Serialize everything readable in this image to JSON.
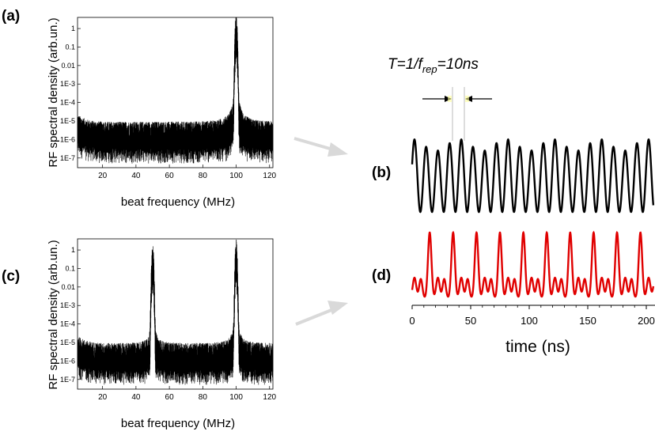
{
  "panel_labels": {
    "a": "(a)",
    "b": "(b)",
    "c": "(c)",
    "d": "(d)"
  },
  "period_annotation": {
    "prefix": "T=1/f",
    "subscript": "rep",
    "suffix": "=10ns"
  },
  "colors": {
    "spectrum": "#000000",
    "trace_b": "#000000",
    "trace_d": "#e00000",
    "arrow": "#d9d9d9"
  },
  "chart_data": [
    {
      "id": "a",
      "type": "line",
      "xlabel": "beat frequency (MHz)",
      "ylabel": "RF spectral density (arb.un.)",
      "xlim": [
        5,
        122
      ],
      "ylim": [
        3e-08,
        4
      ],
      "log_y": true,
      "x_ticks": [
        "20",
        "40",
        "60",
        "80",
        "100",
        "120"
      ],
      "y_ticks": [
        "1",
        "0.1",
        "0.01",
        "1E-3",
        "1E-4",
        "1E-5",
        "1E-6",
        "1E-7"
      ],
      "peaks": [
        {
          "x": 100,
          "y": 1
        }
      ],
      "noise_floor": 1e-06
    },
    {
      "id": "c",
      "type": "line",
      "xlabel": "beat frequency (MHz)",
      "ylabel": "RF spectral density (arb.un.)",
      "xlim": [
        5,
        122
      ],
      "ylim": [
        3e-08,
        4
      ],
      "log_y": true,
      "x_ticks": [
        "20",
        "40",
        "60",
        "80",
        "100",
        "120"
      ],
      "y_ticks": [
        "1",
        "0.1",
        "0.01",
        "1E-3",
        "1E-4",
        "1E-5",
        "1E-6",
        "1E-7"
      ],
      "peaks": [
        {
          "x": 50,
          "y": 0.3
        },
        {
          "x": 100,
          "y": 0.45
        }
      ],
      "noise_floor": 1e-06
    },
    {
      "id": "b",
      "type": "line",
      "xlabel": "",
      "period_ns": 10,
      "xlim": [
        0,
        200
      ],
      "description": "periodic intensity trace"
    },
    {
      "id": "d",
      "type": "line",
      "xlabel": "time (ns)",
      "xlim": [
        0,
        200
      ],
      "x_ticks": [
        "0",
        "50",
        "100",
        "150",
        "200"
      ],
      "period_ns": 20
    }
  ]
}
